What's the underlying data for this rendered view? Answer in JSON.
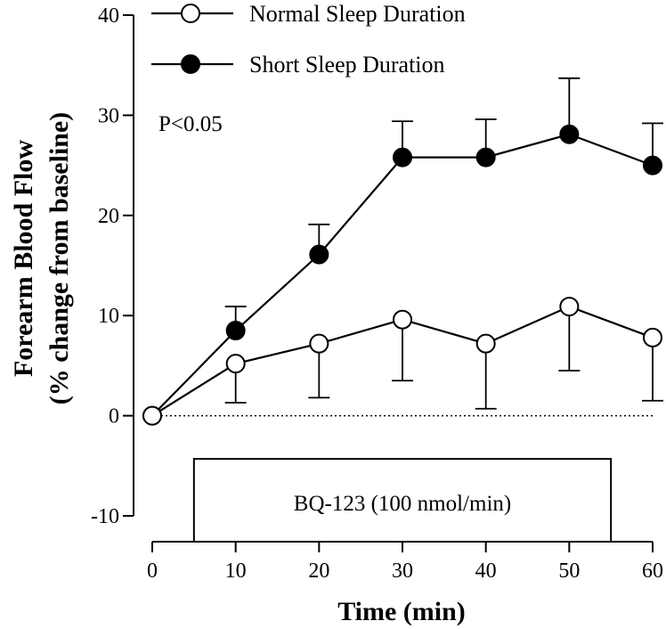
{
  "chart_data": {
    "type": "line",
    "xlabel": "Time (min)",
    "ylabel_line1": "Forearm Blood Flow",
    "ylabel_line2": "(% change from baseline)",
    "xlim": [
      0,
      60
    ],
    "ylim": [
      -10,
      40
    ],
    "xticks": [
      0,
      10,
      20,
      30,
      40,
      50,
      60
    ],
    "yticks": [
      -10,
      0,
      10,
      20,
      30,
      40
    ],
    "grid": false,
    "legend_position": "top-left",
    "series": [
      {
        "name": "Normal Sleep Duration",
        "marker": "open-circle",
        "x": [
          0,
          10,
          20,
          30,
          40,
          50,
          60
        ],
        "y": [
          0,
          5.2,
          7.2,
          9.6,
          7.2,
          10.9,
          7.8
        ],
        "error_lower": [
          0,
          3.9,
          5.4,
          6.1,
          6.5,
          6.4,
          6.3
        ]
      },
      {
        "name": "Short Sleep Duration",
        "marker": "filled-circle",
        "x": [
          0,
          10,
          20,
          30,
          40,
          50,
          60
        ],
        "y": [
          0,
          8.5,
          16.1,
          25.8,
          25.8,
          28.1,
          25.0
        ],
        "error_upper": [
          0,
          2.4,
          3.0,
          3.6,
          3.8,
          5.6,
          4.2
        ]
      }
    ],
    "annotation": "P<0.05",
    "infusion": {
      "label": "BQ-123 (100 nmol/min)",
      "start": 5,
      "end": 55
    },
    "colors": {
      "ink": "#000000",
      "background": "#ffffff"
    }
  }
}
